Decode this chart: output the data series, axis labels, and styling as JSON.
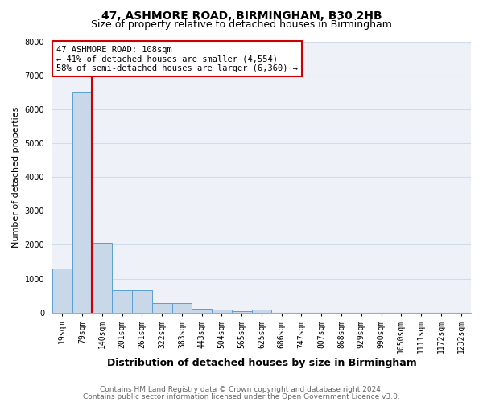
{
  "title1": "47, ASHMORE ROAD, BIRMINGHAM, B30 2HB",
  "title2": "Size of property relative to detached houses in Birmingham",
  "xlabel": "Distribution of detached houses by size in Birmingham",
  "ylabel": "Number of detached properties",
  "categories": [
    "19sqm",
    "79sqm",
    "140sqm",
    "201sqm",
    "261sqm",
    "322sqm",
    "383sqm",
    "443sqm",
    "504sqm",
    "565sqm",
    "625sqm",
    "686sqm",
    "747sqm",
    "807sqm",
    "868sqm",
    "929sqm",
    "990sqm",
    "1050sqm",
    "1111sqm",
    "1172sqm",
    "1232sqm"
  ],
  "values": [
    1300,
    6500,
    2050,
    650,
    650,
    280,
    280,
    120,
    80,
    50,
    80,
    0,
    0,
    0,
    0,
    0,
    0,
    0,
    0,
    0,
    0
  ],
  "bar_color": "#c8d8e8",
  "bar_edge_color": "#5a9fd4",
  "annotation_text": "47 ASHMORE ROAD: 108sqm\n← 41% of detached houses are smaller (4,554)\n58% of semi-detached houses are larger (6,360) →",
  "annotation_box_color": "#ffffff",
  "annotation_border_color": "#cc0000",
  "ylim": [
    0,
    8000
  ],
  "yticks": [
    0,
    1000,
    2000,
    3000,
    4000,
    5000,
    6000,
    7000,
    8000
  ],
  "grid_color": "#d0dce8",
  "background_color": "#eef2f8",
  "footer1": "Contains HM Land Registry data © Crown copyright and database right 2024.",
  "footer2": "Contains public sector information licensed under the Open Government Licence v3.0.",
  "title1_fontsize": 10,
  "title2_fontsize": 9,
  "xlabel_fontsize": 9,
  "ylabel_fontsize": 8,
  "tick_fontsize": 7,
  "annotation_fontsize": 7.5,
  "footer_fontsize": 6.5,
  "red_line_color": "#cc0000"
}
